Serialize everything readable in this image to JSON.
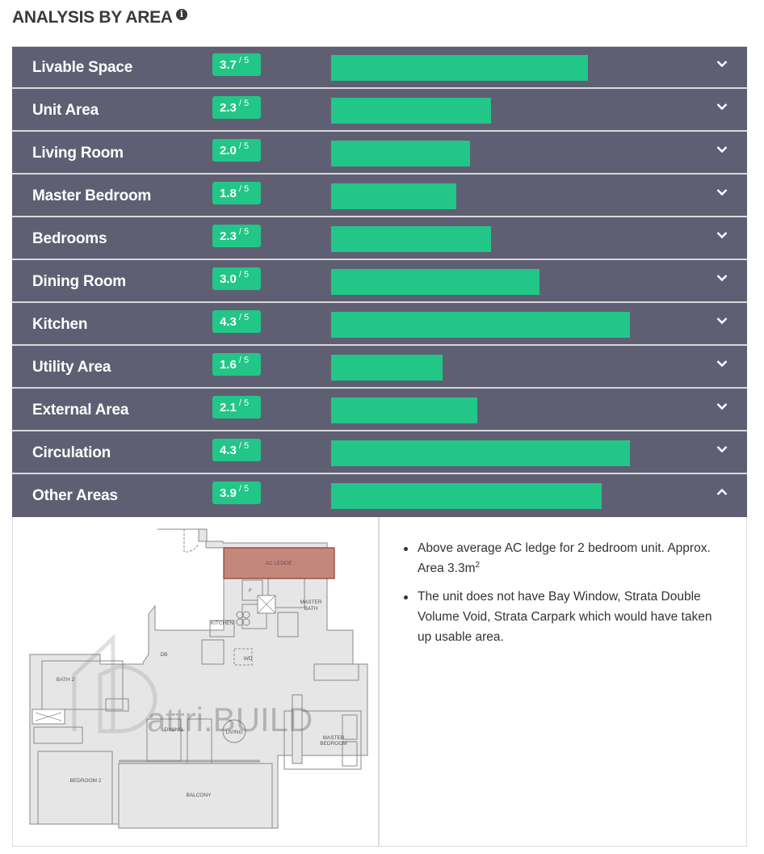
{
  "section": {
    "title": "ANALYSIS BY AREA",
    "info_icon": "info-circle-icon"
  },
  "colors": {
    "row_background": "#5f5f73",
    "score_green": "#22c687",
    "ac_ledge_highlight": "#c4877c"
  },
  "scale_max": "/ 5",
  "areas": [
    {
      "label": "Livable Space",
      "score": "3.7",
      "value": 3.7,
      "expanded": false
    },
    {
      "label": "Unit Area",
      "score": "2.3",
      "value": 2.3,
      "expanded": false
    },
    {
      "label": "Living Room",
      "score": "2.0",
      "value": 2.0,
      "expanded": false
    },
    {
      "label": "Master Bedroom",
      "score": "1.8",
      "value": 1.8,
      "expanded": false
    },
    {
      "label": "Bedrooms",
      "score": "2.3",
      "value": 2.3,
      "expanded": false
    },
    {
      "label": "Dining Room",
      "score": "3.0",
      "value": 3.0,
      "expanded": false
    },
    {
      "label": "Kitchen",
      "score": "4.3",
      "value": 4.3,
      "expanded": false
    },
    {
      "label": "Utility Area",
      "score": "1.6",
      "value": 1.6,
      "expanded": false
    },
    {
      "label": "External Area",
      "score": "2.1",
      "value": 2.1,
      "expanded": false
    },
    {
      "label": "Circulation",
      "score": "4.3",
      "value": 4.3,
      "expanded": false
    },
    {
      "label": "Other Areas",
      "score": "3.9",
      "value": 3.9,
      "expanded": true
    }
  ],
  "expanded_panel": {
    "bullets": [
      {
        "text": "Above average AC ledge for 2 bedroom unit. Approx. Area 3.3m",
        "sup": "2"
      },
      {
        "text": "The unit does not have Bay Window, Strata Double Volume Void, Strata Carpark which would have taken up usable area.",
        "sup": ""
      }
    ],
    "floorplan": {
      "watermark": "attri.BUILD",
      "rooms": {
        "ac_ledge": "AC LEDGE",
        "fridge": "F",
        "master_bath": [
          "MASTER",
          "BATH"
        ],
        "kitchen": "KITCHEN",
        "db": "DB",
        "wd": "WD",
        "bath2": "BATH 2",
        "dining": "DINING",
        "living": "LIVING",
        "master_bedroom": [
          "MASTER",
          "BEDROOM"
        ],
        "bedroom2": "BEDROOM 2",
        "balcony": "BALCONY"
      }
    }
  }
}
